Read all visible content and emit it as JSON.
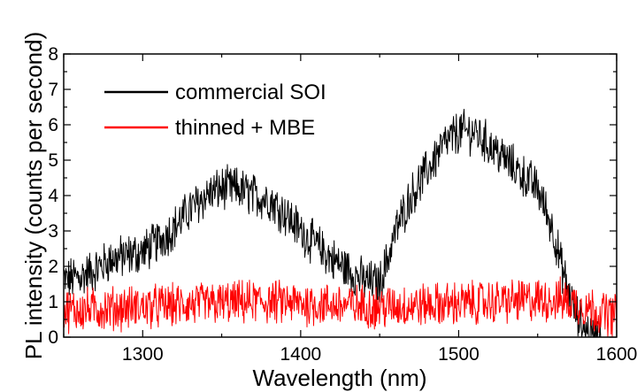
{
  "chart_data": {
    "type": "line",
    "title": "",
    "xlabel": "Wavelength (nm)",
    "ylabel": "PL intensity (counts per second)",
    "xlim": [
      1250,
      1600
    ],
    "ylim": [
      0,
      8
    ],
    "x_ticks": [
      1300,
      1400,
      1500,
      1600
    ],
    "y_ticks": [
      0,
      1,
      2,
      3,
      4,
      5,
      6,
      7,
      8
    ],
    "grid": false,
    "legend_position": "top-left",
    "noise": "high-frequency noise band, approx ±0.5",
    "series": [
      {
        "name": "commercial SOI",
        "color": "#000000",
        "x": [
          1250,
          1260,
          1270,
          1280,
          1290,
          1300,
          1310,
          1320,
          1330,
          1340,
          1350,
          1360,
          1370,
          1380,
          1390,
          1400,
          1410,
          1420,
          1430,
          1440,
          1450,
          1455,
          1460,
          1470,
          1480,
          1490,
          1500,
          1510,
          1520,
          1530,
          1540,
          1550,
          1560,
          1565,
          1570,
          1575,
          1580,
          1585,
          1590
        ],
        "values": [
          1.6,
          1.7,
          1.9,
          2.2,
          2.3,
          2.4,
          2.7,
          3.1,
          3.6,
          4.0,
          4.2,
          4.2,
          4.0,
          3.9,
          3.5,
          3.0,
          2.6,
          2.2,
          1.9,
          1.6,
          1.5,
          2.2,
          3.0,
          4.0,
          4.7,
          5.4,
          5.8,
          5.8,
          5.4,
          5.0,
          4.6,
          4.2,
          3.0,
          2.0,
          1.2,
          0.6,
          0.2,
          0.0,
          0.0
        ]
      },
      {
        "name": "thinned + MBE",
        "color": "#ff0000",
        "x": [
          1250,
          1275,
          1300,
          1325,
          1350,
          1375,
          1400,
          1425,
          1450,
          1475,
          1500,
          1525,
          1550,
          1565,
          1575,
          1590,
          1600
        ],
        "values": [
          0.75,
          0.8,
          0.85,
          0.9,
          0.95,
          1.0,
          0.95,
          0.9,
          0.85,
          0.9,
          0.95,
          1.0,
          1.05,
          1.05,
          0.95,
          0.7,
          0.6
        ]
      }
    ]
  }
}
